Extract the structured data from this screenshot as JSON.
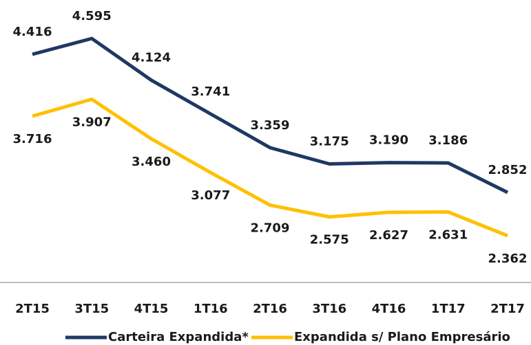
{
  "chart_data": {
    "type": "line",
    "categories": [
      "2T15",
      "3T15",
      "4T15",
      "1T16",
      "2T16",
      "3T16",
      "4T16",
      "1T17",
      "2T17"
    ],
    "series": [
      {
        "name": "Carteira Expandida*",
        "color": "#1f3864",
        "values": [
          4416,
          4595,
          4124,
          3741,
          3359,
          3175,
          3190,
          3186,
          2852
        ],
        "value_labels": [
          "4.416",
          "4.595",
          "4.124",
          "3.741",
          "3.359",
          "3.175",
          "3.190",
          "3.186",
          "2.852"
        ]
      },
      {
        "name": "Expandida s/ Plano Empresário",
        "color": "#ffc000",
        "values": [
          3716,
          3907,
          3460,
          3077,
          2709,
          2575,
          2627,
          2631,
          2362
        ],
        "value_labels": [
          "3.716",
          "3.907",
          "3.460",
          "3.077",
          "2.709",
          "2.575",
          "2.627",
          "2.631",
          "2.362"
        ]
      }
    ],
    "legend": "bottom"
  }
}
